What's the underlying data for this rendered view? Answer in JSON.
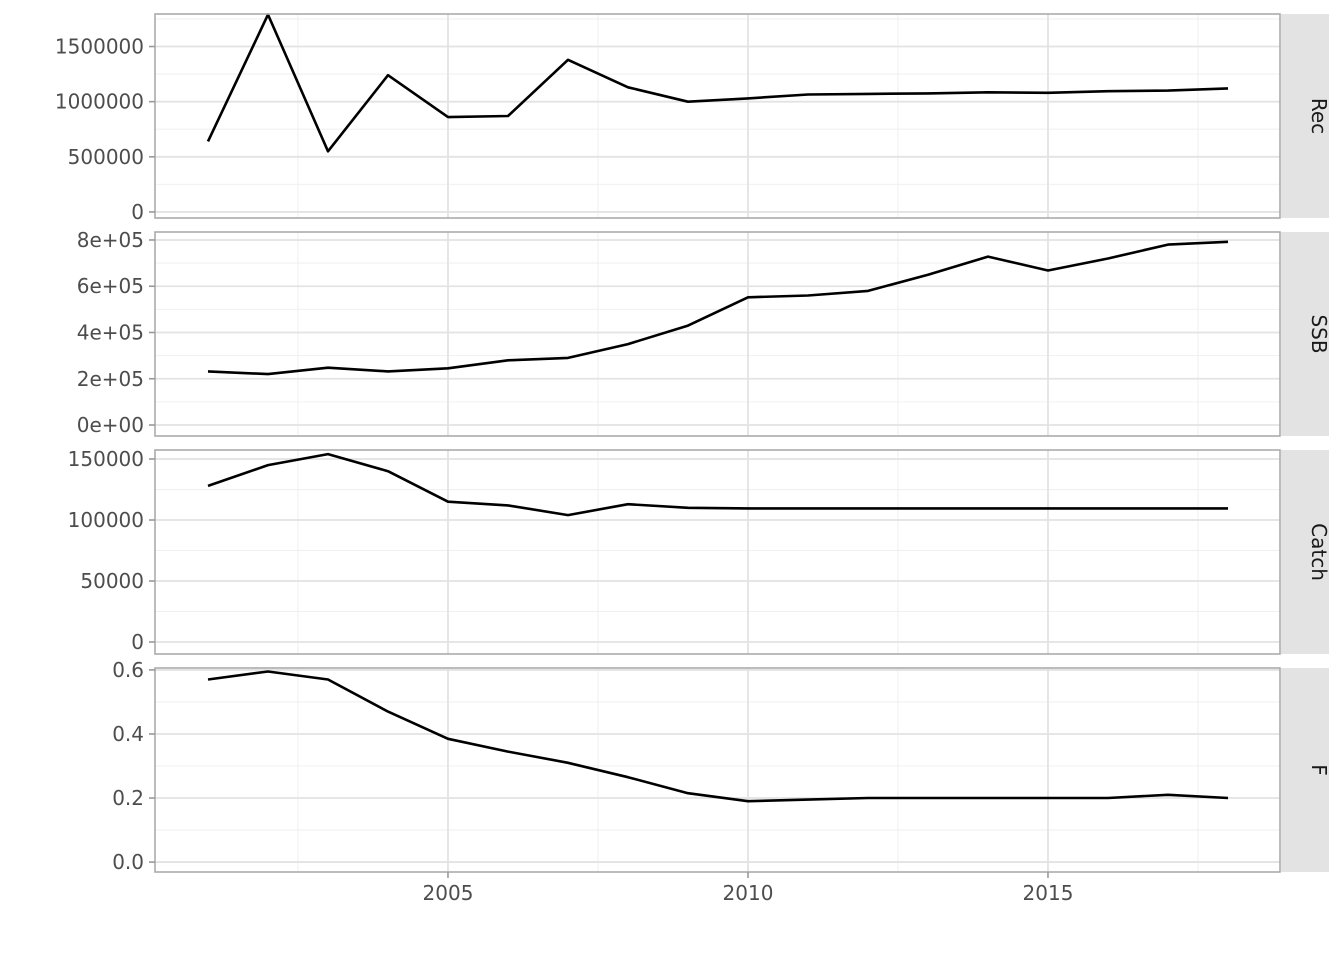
{
  "colors": {
    "background": "#ffffff",
    "panel_background": "#ffffff",
    "panel_border": "#ababab",
    "grid_major": "#e3e3e3",
    "grid_minor": "#f0f0f0",
    "line": "#000000",
    "axis_text": "#4d4d4d",
    "tick_mark": "#999999",
    "strip_background": "#e3e3e3",
    "strip_text": "#1a1a1a"
  },
  "chart_data": {
    "type": "line",
    "title": "",
    "xlabel": "",
    "ylabel": "",
    "legend": "none",
    "grid": "on",
    "facet_layout": "rows",
    "x": [
      2001,
      2002,
      2003,
      2004,
      2005,
      2006,
      2007,
      2008,
      2009,
      2010,
      2011,
      2012,
      2013,
      2014,
      2015,
      2016,
      2017,
      2018
    ],
    "xlim": [
      2000.117,
      2018.867
    ],
    "x_major_ticks": [
      {
        "label": "2005",
        "value": 2005
      },
      {
        "label": "2010",
        "value": 2010
      },
      {
        "label": "2015",
        "value": 2015
      }
    ],
    "x_minor_ticks": [
      2002.5,
      2007.5,
      2012.5,
      2017.5
    ],
    "facets": [
      {
        "label": "Rec",
        "ylim": [
          -55000,
          1795000
        ],
        "y_major_ticks": [
          {
            "label": "1500000",
            "value": 1500000
          },
          {
            "label": "1000000",
            "value": 1000000
          },
          {
            "label": "500000",
            "value": 500000
          },
          {
            "label": "0",
            "value": 0
          }
        ],
        "y_minor_ticks": [
          250000,
          750000,
          1250000,
          1750000
        ],
        "values": [
          640000,
          1790000,
          550000,
          1240000,
          860000,
          870000,
          1380000,
          1130000,
          1000000,
          1030000,
          1065000,
          1070000,
          1075000,
          1085000,
          1080000,
          1095000,
          1100000,
          1120000
        ]
      },
      {
        "label": "SSB",
        "ylim": [
          -47500,
          834500
        ],
        "y_major_ticks": [
          {
            "label": "8e+05",
            "value": 800000
          },
          {
            "label": "6e+05",
            "value": 600000
          },
          {
            "label": "4e+05",
            "value": 400000
          },
          {
            "label": "2e+05",
            "value": 200000
          },
          {
            "label": "0e+00",
            "value": 0
          }
        ],
        "y_minor_ticks": [
          100000,
          300000,
          500000,
          700000
        ],
        "values": [
          232000,
          220000,
          248000,
          232000,
          245000,
          280000,
          290000,
          350000,
          430000,
          552000,
          560000,
          580000,
          650000,
          728000,
          668000,
          720000,
          780000,
          792000
        ]
      },
      {
        "label": "Catch",
        "ylim": [
          -9840,
          157400
        ],
        "y_major_ticks": [
          {
            "label": "150000",
            "value": 150000
          },
          {
            "label": "100000",
            "value": 100000
          },
          {
            "label": "50000",
            "value": 50000
          },
          {
            "label": "0",
            "value": 0
          }
        ],
        "y_minor_ticks": [
          25000,
          75000,
          125000
        ],
        "values": [
          128000,
          145000,
          154000,
          140000,
          115000,
          112000,
          104000,
          113000,
          110000,
          109500,
          109500,
          109500,
          109500,
          109500,
          109500,
          109500,
          109500,
          109500
        ]
      },
      {
        "label": "F",
        "ylim": [
          -0.031,
          0.606
        ],
        "y_major_ticks": [
          {
            "label": "0.6",
            "value": 0.6
          },
          {
            "label": "0.4",
            "value": 0.4
          },
          {
            "label": "0.2",
            "value": 0.2
          },
          {
            "label": "0.0",
            "value": 0.0
          }
        ],
        "y_minor_ticks": [
          0.1,
          0.3,
          0.5
        ],
        "values": [
          0.57,
          0.595,
          0.57,
          0.47,
          0.385,
          0.345,
          0.31,
          0.265,
          0.215,
          0.19,
          0.195,
          0.2,
          0.2,
          0.2,
          0.2,
          0.2,
          0.21,
          0.2
        ]
      }
    ]
  }
}
